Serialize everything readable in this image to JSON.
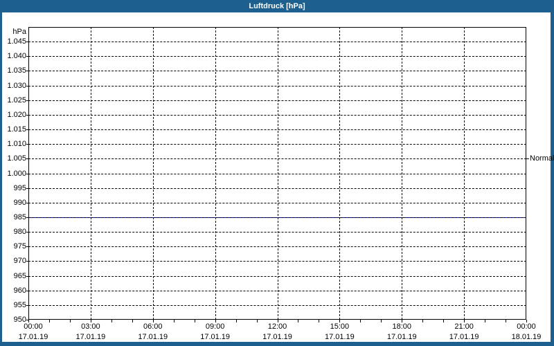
{
  "window": {
    "title": "Luftdruck [hPa]",
    "frame_color": "#1d5f8e",
    "title_text_color": "#ffffff"
  },
  "chart_data": {
    "type": "line",
    "title": "Luftdruck [hPa]",
    "plot_background": "#ffffff",
    "grid": {
      "style": "dashed",
      "color": "#000000"
    },
    "x": [
      0,
      24
    ],
    "series": [
      {
        "name": "Luftdruck",
        "color": "#0000cc",
        "values": [
          985,
          985
        ]
      }
    ],
    "x_axis": {
      "range_hours": [
        0,
        24
      ],
      "major_tick_step_hours": 3,
      "minor_tick_step_hours": 1,
      "tick_labels": [
        {
          "time": "00:00",
          "date": "17.01.19"
        },
        {
          "time": "03:00",
          "date": "17.01.19"
        },
        {
          "time": "06:00",
          "date": "17.01.19"
        },
        {
          "time": "09:00",
          "date": "17.01.19"
        },
        {
          "time": "12:00",
          "date": "17.01.19"
        },
        {
          "time": "15:00",
          "date": "17.01.19"
        },
        {
          "time": "18:00",
          "date": "17.01.19"
        },
        {
          "time": "21:00",
          "date": "17.01.19"
        },
        {
          "time": "00:00",
          "date": "18.01.19"
        }
      ]
    },
    "y_axis": {
      "unit_label": "hPa",
      "min": 950,
      "max": 1050,
      "tick_step": 5,
      "ticks": [
        {
          "value": 1045,
          "label": "1.045"
        },
        {
          "value": 1040,
          "label": "1.040"
        },
        {
          "value": 1035,
          "label": "1.035"
        },
        {
          "value": 1030,
          "label": "1.030"
        },
        {
          "value": 1025,
          "label": "1.025"
        },
        {
          "value": 1020,
          "label": "1.020"
        },
        {
          "value": 1015,
          "label": "1.015"
        },
        {
          "value": 1010,
          "label": "1.010"
        },
        {
          "value": 1005,
          "label": "1.005"
        },
        {
          "value": 1000,
          "label": "1.000"
        },
        {
          "value": 995,
          "label": "995"
        },
        {
          "value": 990,
          "label": "990"
        },
        {
          "value": 985,
          "label": "985"
        },
        {
          "value": 980,
          "label": "980"
        },
        {
          "value": 975,
          "label": "975"
        },
        {
          "value": 970,
          "label": "970"
        },
        {
          "value": 965,
          "label": "965"
        },
        {
          "value": 960,
          "label": "960"
        },
        {
          "value": 955,
          "label": "955"
        },
        {
          "value": 950,
          "label": "950"
        }
      ]
    },
    "normal_marker": {
      "label": "Normal",
      "value": 1005
    }
  }
}
